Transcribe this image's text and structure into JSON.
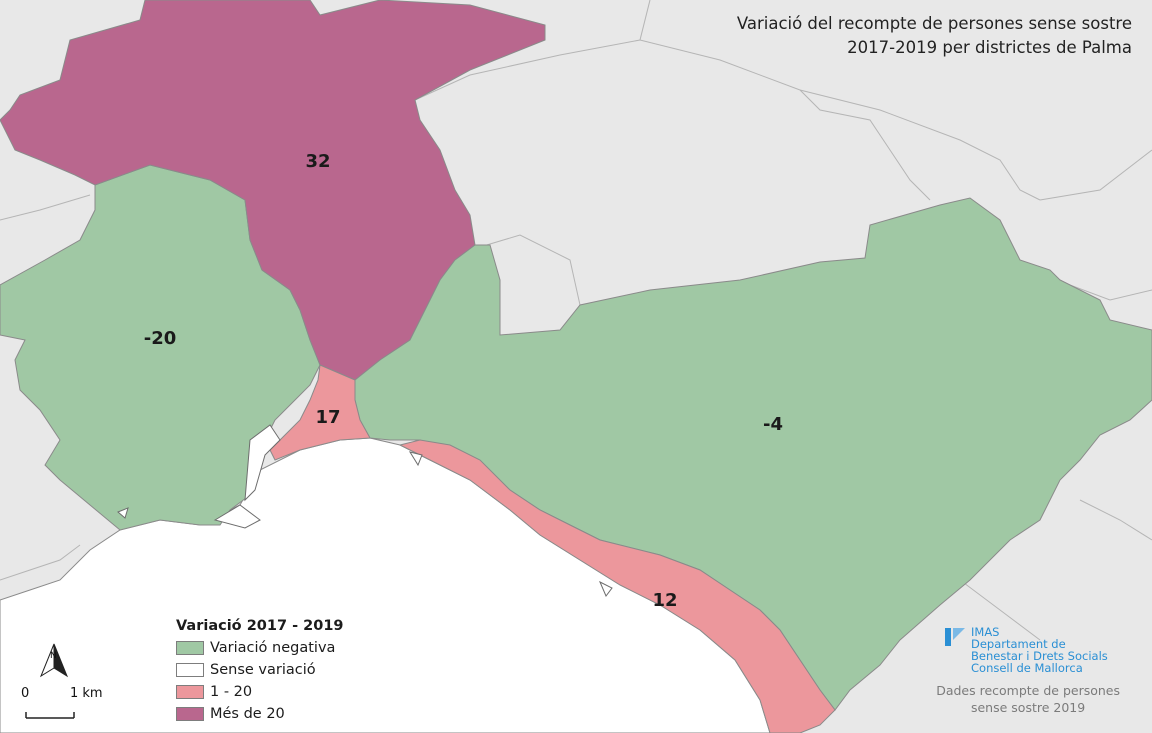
{
  "title": {
    "line1": "Variació del recompte de persones sense sostre",
    "line2": "2017-2019 per districtes de Palma"
  },
  "colors": {
    "negative": "#a0c8a4",
    "none": "#ffffff",
    "positive_low": "#ec979c",
    "positive_high": "#b9678e",
    "land": "#e8e8e8",
    "sea": "#ffffff",
    "brand": "#2a8fd4"
  },
  "districts": [
    {
      "id": "north-west",
      "value": "32",
      "category": "Més de 20"
    },
    {
      "id": "west",
      "value": "-20",
      "category": "Variació negativa"
    },
    {
      "id": "centre",
      "value": "17",
      "category": "1 - 20"
    },
    {
      "id": "east",
      "value": "-4",
      "category": "Variació negativa"
    },
    {
      "id": "coast",
      "value": "12",
      "category": "1 - 20"
    }
  ],
  "legend": {
    "title": "Variació 2017 - 2019",
    "items": [
      {
        "label": "Variació negativa",
        "color": "#a0c8a4"
      },
      {
        "label": "Sense variació",
        "color": "#ffffff"
      },
      {
        "label": "1 - 20",
        "color": "#ec979c"
      },
      {
        "label": "Més de 20",
        "color": "#b9678e"
      }
    ]
  },
  "scalebar": {
    "start": "0",
    "end": "1 km",
    "north_label": "N"
  },
  "logo": {
    "line1": "IMAS",
    "line2": "Departament de",
    "line3": "Benestar i Drets Socials",
    "line4": "Consell de Mallorca"
  },
  "source": {
    "line1": "Dades recompte de persones",
    "line2": "sense sostre 2019"
  }
}
